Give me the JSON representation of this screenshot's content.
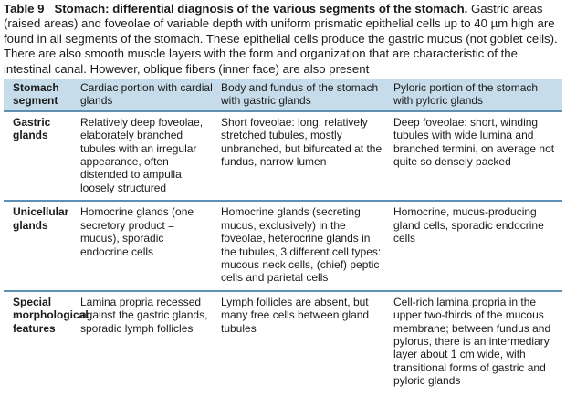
{
  "caption": {
    "label": "Table 9",
    "title": "Stomach: differential diagnosis of the various segments of the stomach.",
    "text": " Gastric areas (raised areas) and foveolae of variable depth with uniform prismatic epithelial cells up to 40 µm high are found in all segments of the stomach. These epithelial cells produce the gastric mucus (not goblet cells). There are also smooth muscle layers with the form and organization that are characteristic of the intestinal canal. However, oblique fibers (inner face) are also present"
  },
  "table": {
    "headers": [
      "Stomach segment",
      "Cardiac portion with cardial glands",
      "Body and fundus of the stomach with gastric glands",
      "Pyloric portion of the stomach with pyloric glands"
    ],
    "rows": [
      {
        "label": "Gastric glands",
        "cells": [
          "Relatively deep foveolae, elaborately branched tubules with an irregular appearance, often distended to ampulla, loosely structured",
          "Short foveolae: long, relatively stretched tubules, mostly unbranched, but bifurcated at the fundus, narrow lumen",
          "Deep foveolae: short, winding tubules with wide lumina and branched termini, on average not quite so densely packed"
        ]
      },
      {
        "label": "Unicellular glands",
        "cells": [
          "Homocrine glands (one secretory product = mucus), sporadic endocrine cells",
          "Homocrine glands (secreting mucus, exclusively) in the foveolae, heterocrine glands in the tubules, 3 different cell types: mucous neck cells, (chief) peptic cells and parietal cells",
          "Homocrine, mucus-producing gland cells, sporadic endocrine cells"
        ]
      },
      {
        "label": "Special morphological features",
        "cells": [
          "Lamina propria recessed against the gastric glands, sporadic lymph follicles",
          "Lymph follicles are absent, but many free cells between gland tubules",
          "Cell-rich lamina propria in the upper two-thirds of the mucous membrane; between fundus and pylorus, there is an intermediary layer about 1 cm wide, with transitional forms of gastric and pyloric glands"
        ]
      }
    ]
  }
}
